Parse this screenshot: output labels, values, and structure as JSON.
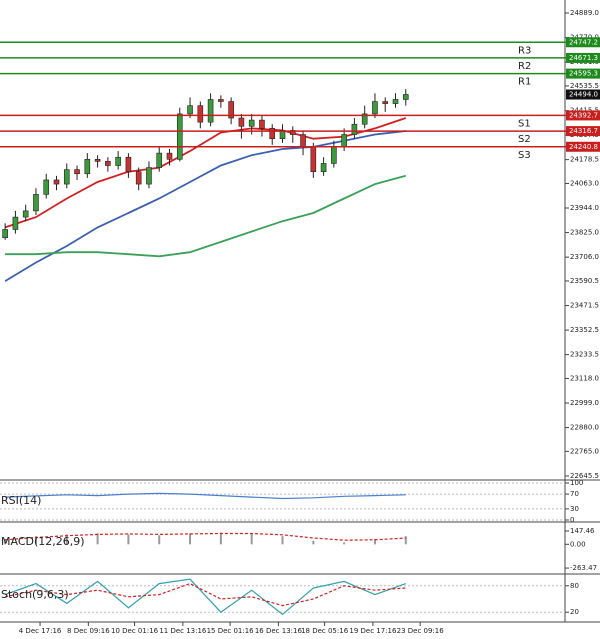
{
  "chart_data": {
    "type": "candlestick",
    "xlim": [
      -0.5,
      54.5
    ],
    "ylim": [
      22626,
      24952
    ],
    "xticks": [
      {
        "value": 3.4,
        "label": "4 Dec 17:16"
      },
      {
        "value": 8.1,
        "label": "8 Dec 09:16"
      },
      {
        "value": 12.6,
        "label": "10 Dec 01:16"
      },
      {
        "value": 17.3,
        "label": "11 Dec 13:16"
      },
      {
        "value": 21.9,
        "label": "15 Dec 01:16"
      },
      {
        "value": 26.6,
        "label": "16 Dec 13:16"
      },
      {
        "value": 31.1,
        "label": "18 Dec 05:16"
      },
      {
        "value": 35.8,
        "label": "19 Dec 17:16"
      },
      {
        "value": 40.4,
        "label": "23 Dec 09:16"
      }
    ],
    "yticks": [
      {
        "value": 24889,
        "label": "24889.0"
      },
      {
        "value": 24770,
        "label": "24770.0"
      },
      {
        "value": 24651,
        "label": "24651.0"
      },
      24535.5,
      24415.5,
      24297.5,
      24178.5,
      {
        "value": 24063,
        "label": "24063.0"
      },
      {
        "value": 23944,
        "label": "23944.0"
      },
      {
        "value": 23825,
        "label": "23825.0"
      },
      {
        "value": 23706,
        "label": "23706.0"
      },
      23590.5,
      23471.5,
      23352.5,
      23233.5,
      {
        "value": 23118,
        "label": "23118.0"
      },
      {
        "value": 22999,
        "label": "22999.0"
      },
      {
        "value": 22880,
        "label": "22880.0"
      },
      {
        "value": 22765,
        "label": "22765.0"
      },
      22645.5
    ],
    "up_color": "#3c9a3c",
    "down_color": "#c83232",
    "candles": {
      "open": [
        23800,
        23840,
        23900,
        23930,
        24010,
        24080,
        24060,
        24130,
        24110,
        24180,
        24170,
        24150,
        24190,
        24120,
        24060,
        24140,
        24210,
        24180,
        24400,
        24440,
        24360,
        24470,
        24460,
        24380,
        24340,
        24370,
        24330,
        24280,
        24320,
        24300,
        24240,
        24120,
        24160,
        24240,
        24300,
        24350,
        24400,
        24460,
        24450,
        24470
      ],
      "high": [
        23870,
        23930,
        23960,
        24040,
        24110,
        24100,
        24160,
        24150,
        24210,
        24200,
        24190,
        24220,
        24210,
        24140,
        24170,
        24240,
        24230,
        24430,
        24480,
        24460,
        24500,
        24490,
        24480,
        24400,
        24400,
        24390,
        24350,
        24350,
        24340,
        24320,
        24260,
        24190,
        24270,
        24330,
        24380,
        24440,
        24500,
        24480,
        24500,
        24520
      ],
      "low": [
        23790,
        23820,
        23880,
        23910,
        23990,
        24030,
        24040,
        24080,
        24090,
        24140,
        24120,
        24130,
        24090,
        24030,
        24040,
        24120,
        24150,
        24170,
        24380,
        24330,
        24340,
        24430,
        24350,
        24280,
        24300,
        24290,
        24250,
        24260,
        24260,
        24200,
        24090,
        24100,
        24140,
        24220,
        24280,
        24330,
        24380,
        24410,
        24430,
        24440
      ],
      "close": [
        23840,
        23900,
        23930,
        24010,
        24080,
        24060,
        24130,
        24110,
        24180,
        24170,
        24150,
        24190,
        24120,
        24060,
        24140,
        24210,
        24180,
        24400,
        24440,
        24360,
        24470,
        24460,
        24380,
        24340,
        24370,
        24330,
        24280,
        24320,
        24300,
        24240,
        24120,
        24160,
        24240,
        24300,
        24350,
        24400,
        24460,
        24450,
        24470,
        24494
      ]
    },
    "series": [
      {
        "color": "#d42020",
        "x": [
          0,
          3,
          6,
          9,
          12,
          15,
          18,
          21,
          24,
          27,
          30,
          33,
          36,
          39
        ],
        "values": [
          23850,
          23900,
          23990,
          24070,
          24120,
          24140,
          24220,
          24310,
          24330,
          24320,
          24280,
          24290,
          24330,
          24380
        ]
      },
      {
        "color": "#3a5fb0",
        "x": [
          0,
          3,
          6,
          9,
          12,
          15,
          18,
          21,
          24,
          27,
          30,
          33,
          36,
          39
        ],
        "values": [
          23590,
          23680,
          23760,
          23850,
          23920,
          23990,
          24070,
          24150,
          24200,
          24230,
          24240,
          24270,
          24300,
          24317
        ]
      },
      {
        "color": "#3aa05a",
        "x": [
          0,
          3,
          6,
          9,
          12,
          15,
          18,
          21,
          24,
          27,
          30,
          33,
          36,
          39
        ],
        "values": [
          23720,
          23720,
          23730,
          23730,
          23720,
          23710,
          23730,
          23780,
          23830,
          23880,
          23920,
          23990,
          24060,
          24100
        ]
      }
    ],
    "levels": [
      {
        "name": "R3",
        "value": 24747.2,
        "color": "#1e8a1e"
      },
      {
        "name": "R2",
        "value": 24671.3,
        "color": "#1e8a1e"
      },
      {
        "name": "R1",
        "value": 24595.3,
        "color": "#1e8a1e"
      },
      {
        "name": "S1",
        "value": 24392.7,
        "color": "#c81e1e"
      },
      {
        "name": "S2",
        "value": 24316.7,
        "color": "#c81e1e"
      },
      {
        "name": "S3",
        "value": 24240.8,
        "color": "#c81e1e"
      }
    ],
    "last_price": {
      "value": 24494,
      "label": "24494.0"
    },
    "indicators": [
      {
        "type": "line",
        "title": "RSI(14)",
        "ylim": [
          0,
          100
        ],
        "yticks": [
          100,
          70,
          30,
          0
        ],
        "series": [
          {
            "color": "#4a7fd0",
            "x": [
              0,
              3,
              6,
              9,
              12,
              15,
              18,
              21,
              24,
              27,
              30,
              33,
              36,
              39
            ],
            "values": [
              62,
              65,
              68,
              66,
              70,
              72,
              70,
              66,
              62,
              58,
              60,
              64,
              66,
              68
            ]
          }
        ]
      },
      {
        "type": "macd",
        "title": "MACD(12,26,9)",
        "ylim": [
          -296,
          225
        ],
        "yticks": [
          147.46,
          {
            "value": 0,
            "label": "0.00"
          },
          -263.47
        ],
        "histogram": {
          "color": "#999999",
          "x": [
            0,
            3,
            6,
            9,
            12,
            15,
            18,
            21,
            24,
            27,
            30,
            33,
            36,
            39
          ],
          "values": [
            60,
            90,
            110,
            120,
            110,
            100,
            120,
            130,
            120,
            90,
            40,
            20,
            60,
            90
          ]
        },
        "series": [
          {
            "color": "#d42020",
            "x": [
              0,
              3,
              6,
              9,
              12,
              15,
              18,
              21,
              24,
              27,
              30,
              33,
              36,
              39
            ],
            "values": [
              50,
              75,
              95,
              110,
              115,
              110,
              115,
              120,
              120,
              105,
              70,
              45,
              50,
              70
            ]
          }
        ]
      },
      {
        "type": "line",
        "title": "Stoch(9,6,3)",
        "ylim": [
          0,
          100
        ],
        "yticks": [
          80,
          20
        ],
        "series": [
          {
            "color": "#30a0b0",
            "x": [
              0,
              3,
              6,
              9,
              12,
              15,
              18,
              21,
              24,
              27,
              30,
              33,
              36,
              39
            ],
            "values": [
              60,
              85,
              40,
              90,
              30,
              85,
              95,
              20,
              70,
              15,
              75,
              90,
              60,
              85
            ]
          },
          {
            "color": "#d42020",
            "dashed": true,
            "x": [
              0,
              3,
              6,
              9,
              12,
              15,
              18,
              21,
              24,
              27,
              30,
              33,
              36,
              39
            ],
            "values": [
              55,
              70,
              60,
              70,
              55,
              60,
              85,
              50,
              55,
              35,
              50,
              80,
              70,
              75
            ]
          }
        ]
      }
    ]
  }
}
